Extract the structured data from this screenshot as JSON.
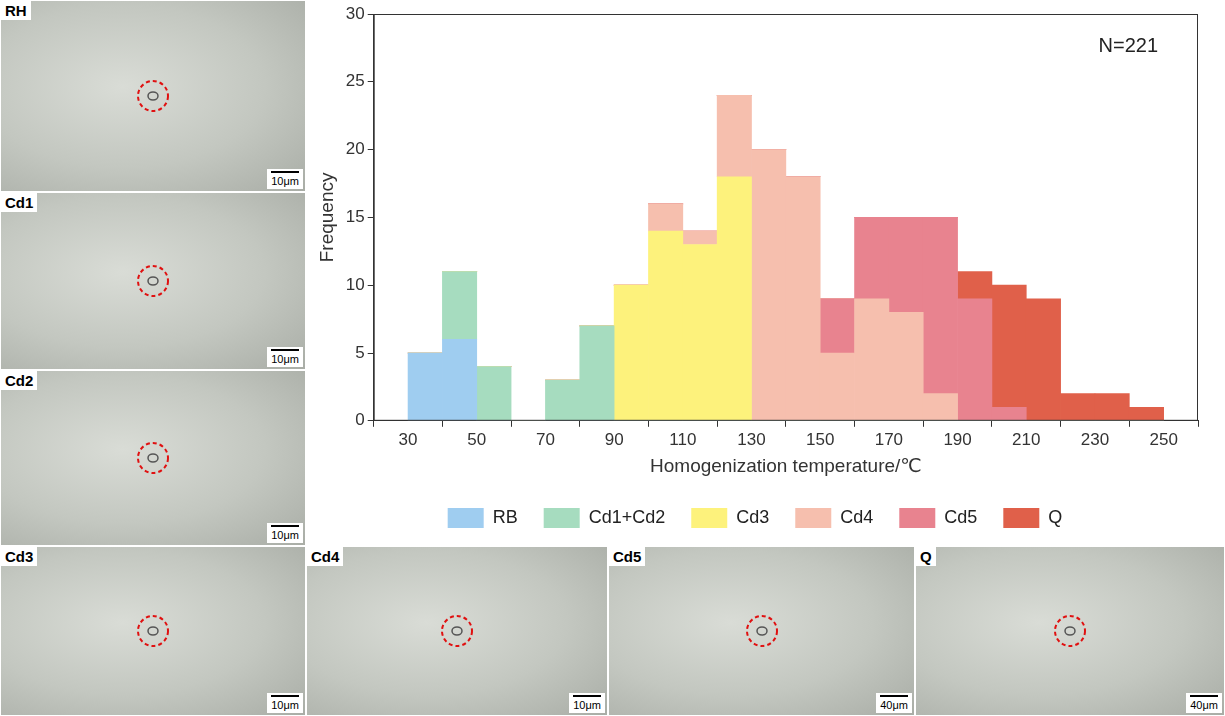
{
  "chart_data": {
    "type": "histogram",
    "x_label": "Homogenization temperature/℃",
    "y_label": "Frequency",
    "annotation": "N=221",
    "bins": [
      30,
      40,
      50,
      60,
      70,
      80,
      90,
      100,
      110,
      120,
      130,
      140,
      150,
      160,
      170,
      180,
      190,
      200,
      210,
      220,
      230,
      240,
      250
    ],
    "series": [
      {
        "name": "RB",
        "color": "#9fcdf0",
        "values": [
          5,
          6,
          0,
          0,
          0,
          0,
          0,
          0,
          0,
          0,
          0,
          0,
          0,
          0,
          0,
          0,
          0,
          0,
          0,
          0,
          0,
          0
        ]
      },
      {
        "name": "Cd1+Cd2",
        "color": "#a6dcbf",
        "values": [
          0,
          5,
          4,
          0,
          3,
          7,
          0,
          0,
          0,
          0,
          0,
          0,
          0,
          0,
          0,
          0,
          0,
          0,
          0,
          0,
          0,
          0
        ]
      },
      {
        "name": "Cd3",
        "color": "#fdf27c",
        "values": [
          0,
          0,
          0,
          0,
          0,
          0,
          10,
          14,
          13,
          18,
          0,
          0,
          0,
          0,
          0,
          0,
          0,
          0,
          0,
          0,
          0,
          0
        ]
      },
      {
        "name": "Cd4",
        "color": "#f6bfae",
        "values": [
          0,
          0,
          0,
          0,
          0,
          0,
          0,
          2,
          1,
          6,
          20,
          18,
          5,
          9,
          8,
          2,
          0,
          0,
          0,
          0,
          0,
          0
        ]
      },
      {
        "name": "Cd5",
        "color": "#e8838f",
        "values": [
          0,
          0,
          0,
          0,
          0,
          0,
          0,
          0,
          0,
          0,
          0,
          0,
          4,
          6,
          7,
          13,
          9,
          1,
          0,
          0,
          0,
          0
        ]
      },
      {
        "name": "Q",
        "color": "#e0604a",
        "values": [
          0,
          0,
          0,
          0,
          0,
          0,
          0,
          0,
          0,
          0,
          0,
          0,
          0,
          0,
          0,
          0,
          2,
          9,
          9,
          2,
          2,
          1
        ]
      }
    ],
    "xlim": [
      30,
      250
    ],
    "xticks": [
      30,
      50,
      70,
      90,
      110,
      130,
      150,
      170,
      190,
      210,
      230,
      250
    ],
    "ylim": [
      0,
      30
    ],
    "yticks": [
      0,
      5,
      10,
      15,
      20,
      25,
      30
    ],
    "stacked": true,
    "grid": false,
    "legend": "bottom"
  },
  "panels": [
    {
      "label": "RH",
      "scale": "10μm"
    },
    {
      "label": "Cd1",
      "scale": "10μm"
    },
    {
      "label": "Cd2",
      "scale": "10μm"
    },
    {
      "label": "Cd3",
      "scale": "10μm"
    },
    {
      "label": "Cd4",
      "scale": "10μm"
    },
    {
      "label": "Cd5",
      "scale": "40μm"
    },
    {
      "label": "Q",
      "scale": "40μm"
    }
  ]
}
